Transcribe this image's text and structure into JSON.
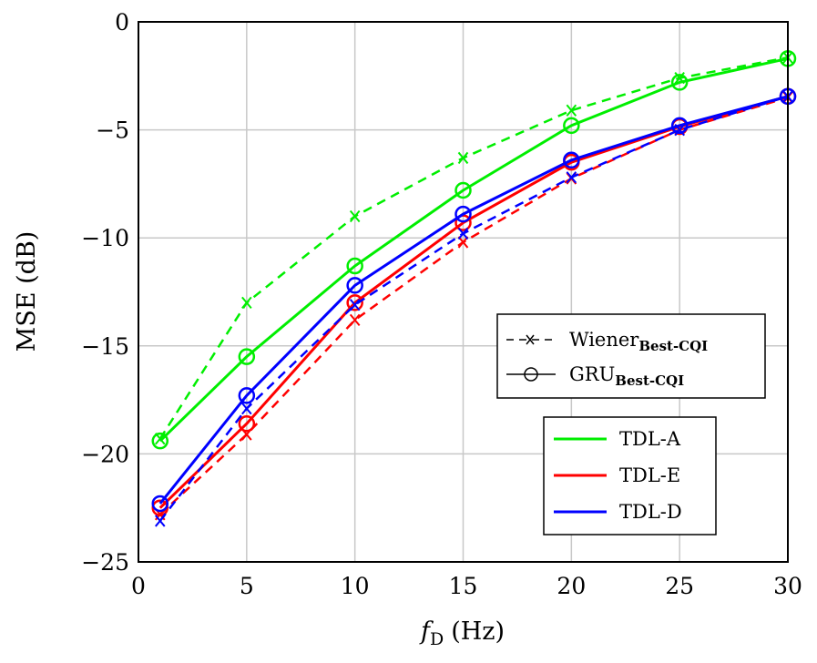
{
  "chart_data": {
    "type": "line",
    "xlabel_main": "f",
    "xlabel_sub": "D",
    "xlabel_unit": "(Hz)",
    "ylabel": "MSE (dB)",
    "xlim": [
      0,
      30
    ],
    "ylim": [
      -25,
      0
    ],
    "xticks": [
      "0",
      "5",
      "10",
      "15",
      "20",
      "25",
      "30"
    ],
    "yticks": [
      "0",
      "−5",
      "−10",
      "−15",
      "−20",
      "−25"
    ],
    "grid": true,
    "x": [
      1,
      5,
      10,
      15,
      20,
      25,
      30
    ],
    "style_legend": [
      {
        "main": "Wiener",
        "sub": "Best-CQI",
        "style": "dashed",
        "marker": "x"
      },
      {
        "main": "GRU",
        "sub": "Best-CQI",
        "style": "solid",
        "marker": "o"
      }
    ],
    "color_legend": [
      {
        "name": "TDL-A",
        "color": "#00ee00"
      },
      {
        "name": "TDL-E",
        "color": "#ff0000"
      },
      {
        "name": "TDL-D",
        "color": "#0000ff"
      }
    ],
    "series": [
      {
        "model": "TDL-A",
        "method": "Wiener",
        "color": "#00ee00",
        "values": [
          -19.3,
          -13.0,
          -9.0,
          -6.3,
          -4.1,
          -2.6,
          -1.65
        ]
      },
      {
        "model": "TDL-A",
        "method": "GRU",
        "color": "#00ee00",
        "values": [
          -19.4,
          -15.5,
          -11.3,
          -7.8,
          -4.8,
          -2.8,
          -1.7
        ]
      },
      {
        "model": "TDL-E",
        "method": "Wiener",
        "color": "#ff0000",
        "values": [
          -22.8,
          -19.1,
          -13.8,
          -10.2,
          -7.25,
          -5.0,
          -3.5
        ]
      },
      {
        "model": "TDL-E",
        "method": "GRU",
        "color": "#ff0000",
        "values": [
          -22.5,
          -18.6,
          -13.0,
          -9.3,
          -6.5,
          -4.85,
          -3.45
        ]
      },
      {
        "model": "TDL-D",
        "method": "Wiener",
        "color": "#0000ff",
        "values": [
          -23.1,
          -17.9,
          -13.1,
          -9.8,
          -7.2,
          -5.0,
          -3.45
        ]
      },
      {
        "model": "TDL-D",
        "method": "GRU",
        "color": "#0000ff",
        "values": [
          -22.3,
          -17.3,
          -12.2,
          -8.9,
          -6.4,
          -4.8,
          -3.45
        ]
      }
    ]
  }
}
